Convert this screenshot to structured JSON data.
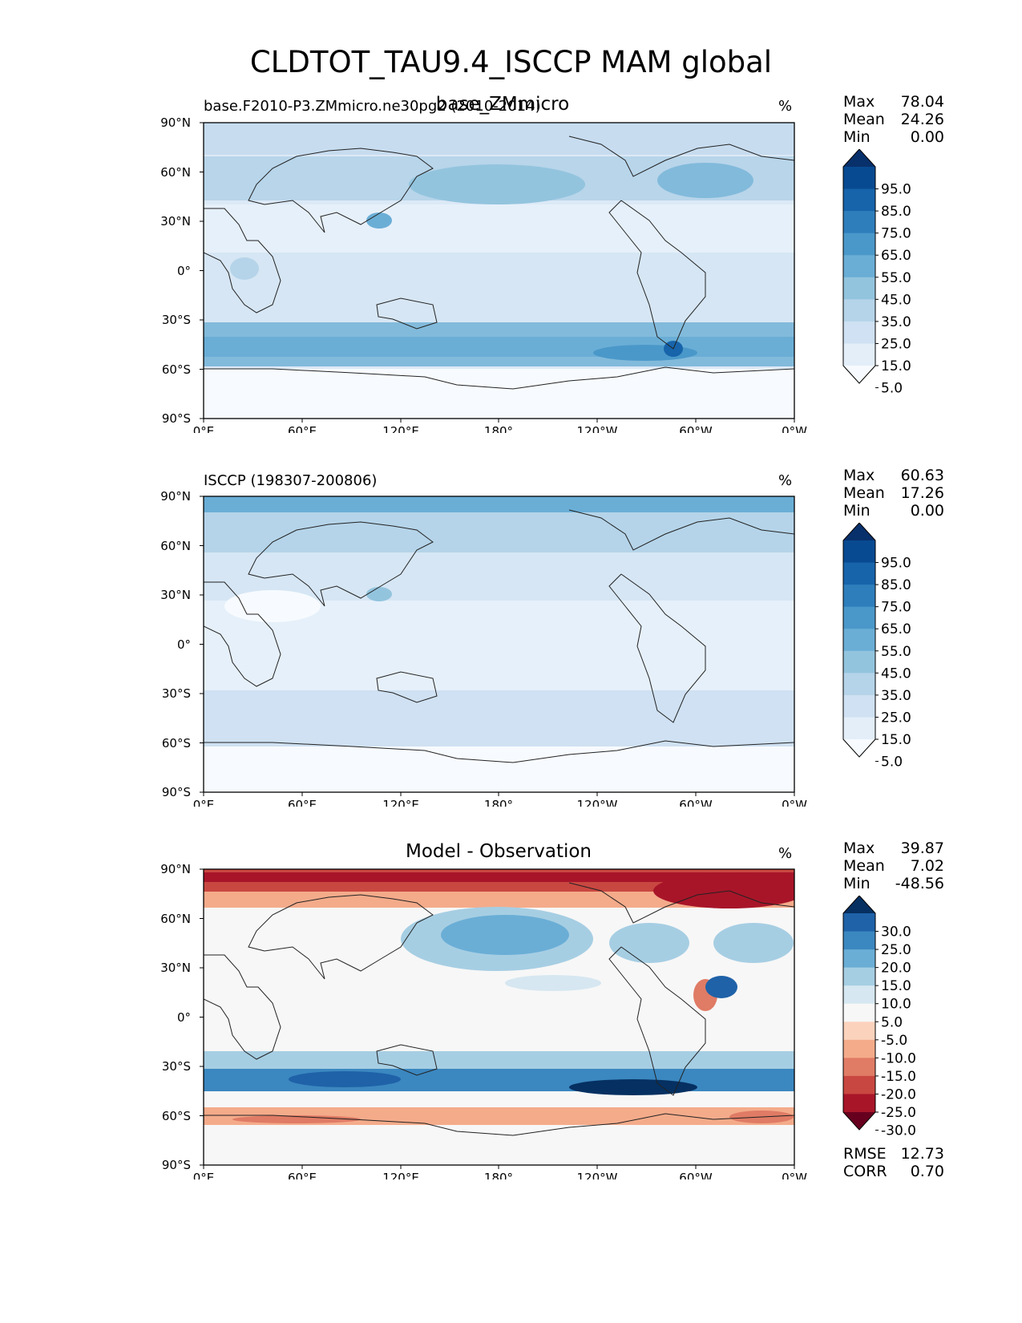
{
  "figure": {
    "title": "CLDTOT_TAU9.4_ISCCP MAM global"
  },
  "axes": {
    "lat_labels": [
      "90°N",
      "60°N",
      "30°N",
      "0°",
      "30°S",
      "60°S",
      "90°S"
    ],
    "lon_labels": [
      "0°E",
      "60°E",
      "120°E",
      "180°",
      "120°W",
      "60°W",
      "0°W"
    ]
  },
  "panels": [
    {
      "id": "model",
      "left_title": "base.F2010-P3.ZMmicro.ne30pg2 (2010-2014)",
      "center_title": "base_ZMmicro",
      "units": "%",
      "stats": [
        {
          "label": "Max",
          "value": "78.04"
        },
        {
          "label": "Mean",
          "value": "24.26"
        },
        {
          "label": "Min",
          "value": "0.00"
        }
      ],
      "colorbar": {
        "ticks": [
          "95.0",
          "85.0",
          "75.0",
          "65.0",
          "55.0",
          "45.0",
          "35.0",
          "25.0",
          "15.0",
          "5.0"
        ],
        "colors": [
          "#f7fbff",
          "#e3eef9",
          "#cfe1f2",
          "#b5d4e9",
          "#93c4de",
          "#6aaed6",
          "#4a98c9",
          "#2e7ebc",
          "#1764ab",
          "#084a91",
          "#08306b"
        ]
      }
    },
    {
      "id": "obs",
      "left_title": "ISCCP (198307-200806)",
      "center_title": "",
      "units": "%",
      "stats": [
        {
          "label": "Max",
          "value": "60.63"
        },
        {
          "label": "Mean",
          "value": "17.26"
        },
        {
          "label": "Min",
          "value": "0.00"
        }
      ],
      "colorbar": {
        "ticks": [
          "95.0",
          "85.0",
          "75.0",
          "65.0",
          "55.0",
          "45.0",
          "35.0",
          "25.0",
          "15.0",
          "5.0"
        ],
        "colors": [
          "#f7fbff",
          "#e3eef9",
          "#cfe1f2",
          "#b5d4e9",
          "#93c4de",
          "#6aaed6",
          "#4a98c9",
          "#2e7ebc",
          "#1764ab",
          "#084a91",
          "#08306b"
        ]
      }
    },
    {
      "id": "diff",
      "left_title": "",
      "center_title": "Model - Observation",
      "units": "%",
      "stats": [
        {
          "label": "Max",
          "value": "39.87"
        },
        {
          "label": "Mean",
          "value": "7.02"
        },
        {
          "label": "Min",
          "value": "-48.56"
        }
      ],
      "extra_stats": [
        {
          "label": "RMSE",
          "value": "12.73"
        },
        {
          "label": "CORR",
          "value": "0.70"
        }
      ],
      "colorbar": {
        "ticks": [
          "30.0",
          "25.0",
          "20.0",
          "15.0",
          "10.0",
          "5.0",
          "-5.0",
          "-10.0",
          "-15.0",
          "-20.0",
          "-25.0",
          "-30.0"
        ],
        "colors": [
          "#67001f",
          "#a81529",
          "#c94741",
          "#e07b65",
          "#f4ab8a",
          "#fbd3bd",
          "#f7f7f7",
          "#d6e7f1",
          "#a6cee3",
          "#6aaed6",
          "#3b87c0",
          "#1f62a8",
          "#053061"
        ]
      }
    }
  ]
}
